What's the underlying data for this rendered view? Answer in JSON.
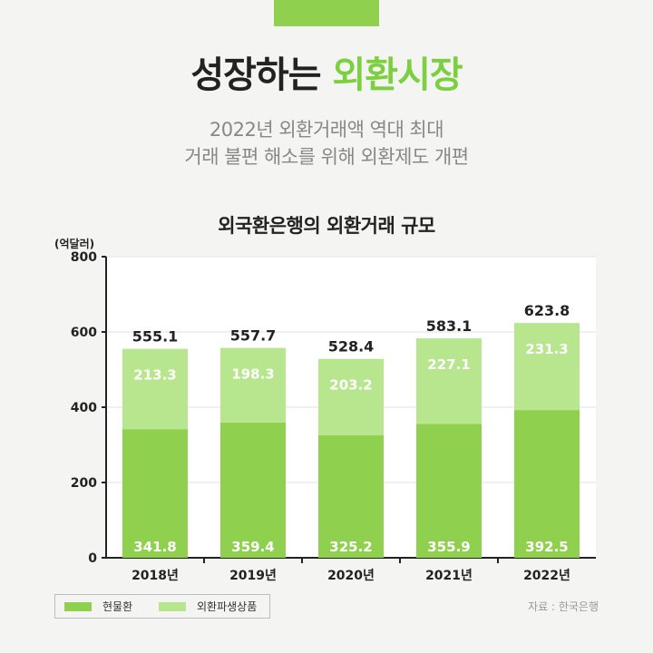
{
  "header": {
    "title_part1": "성장하는",
    "title_part2": "외환시장",
    "subtitle_line1": "2022년 외환거래액 역대 최대",
    "subtitle_line2": "거래 불편 해소를 위해 외환제도 개편"
  },
  "colors": {
    "accent": "#8fd14f",
    "spot": "#8fd14f",
    "derivatives": "#b8e68e",
    "title_highlight": "#7ccf3e"
  },
  "chart_data": {
    "type": "bar",
    "stacked": true,
    "title": "외국환은행의 외환거래 규모",
    "unit": "(억달러)",
    "categories": [
      "2018년",
      "2019년",
      "2020년",
      "2021년",
      "2022년"
    ],
    "series": [
      {
        "name": "현물환",
        "values": [
          341.8,
          359.4,
          325.2,
          355.9,
          392.5
        ]
      },
      {
        "name": "외환파생상품",
        "values": [
          213.3,
          198.3,
          203.2,
          227.1,
          231.3
        ]
      }
    ],
    "totals": [
      555.1,
      557.7,
      528.4,
      583.1,
      623.8
    ],
    "ylim": [
      0,
      800
    ],
    "yticks": [
      0,
      200,
      400,
      600,
      800
    ],
    "grid": true,
    "legend_position": "bottom-left"
  },
  "source": "자료 : 한국은행"
}
